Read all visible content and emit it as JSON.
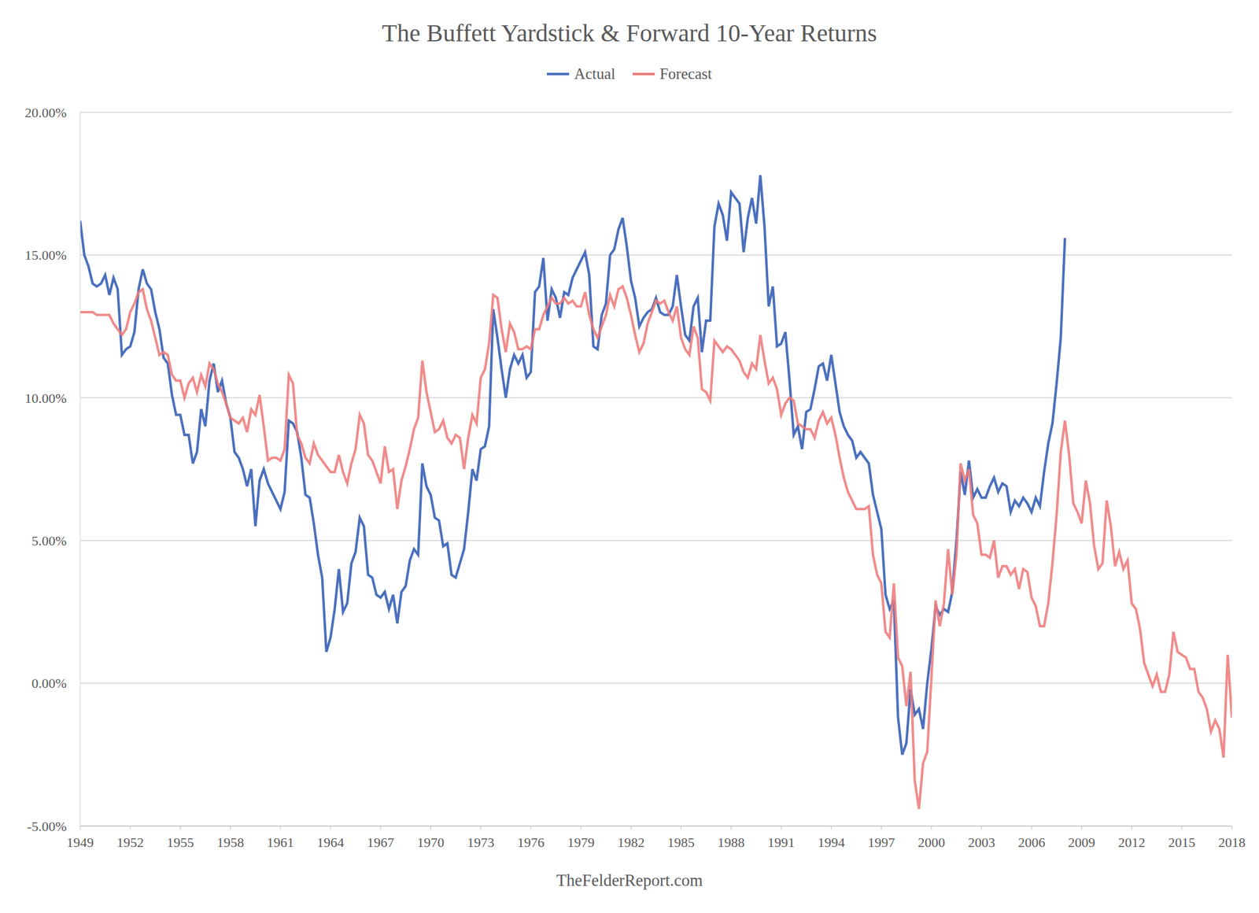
{
  "chart_data": {
    "type": "line",
    "title": "The Buffett Yardstick & Forward 10-Year Returns",
    "source": "TheFelderReport.com",
    "x": [
      1949,
      1949.25,
      1949.5,
      1949.75,
      1950,
      1950.25,
      1950.5,
      1950.75,
      1951,
      1951.25,
      1951.5,
      1951.75,
      1952,
      1952.25,
      1952.5,
      1952.75,
      1953,
      1953.25,
      1953.5,
      1953.75,
      1954,
      1954.25,
      1954.5,
      1954.75,
      1955,
      1955.25,
      1955.5,
      1955.75,
      1956,
      1956.25,
      1956.5,
      1956.75,
      1957,
      1957.25,
      1957.5,
      1957.75,
      1958,
      1958.25,
      1958.5,
      1958.75,
      1959,
      1959.25,
      1959.5,
      1959.75,
      1960,
      1960.25,
      1960.5,
      1960.75,
      1961,
      1961.25,
      1961.5,
      1961.75,
      1962,
      1962.25,
      1962.5,
      1962.75,
      1963,
      1963.25,
      1963.5,
      1963.75,
      1964,
      1964.25,
      1964.5,
      1964.75,
      1965,
      1965.25,
      1965.5,
      1965.75,
      1966,
      1966.25,
      1966.5,
      1966.75,
      1967,
      1967.25,
      1967.5,
      1967.75,
      1968,
      1968.25,
      1968.5,
      1968.75,
      1969,
      1969.25,
      1969.5,
      1969.75,
      1970,
      1970.25,
      1970.5,
      1970.75,
      1971,
      1971.25,
      1971.5,
      1971.75,
      1972,
      1972.25,
      1972.5,
      1972.75,
      1973,
      1973.25,
      1973.5,
      1973.75,
      1974,
      1974.25,
      1974.5,
      1974.75,
      1975,
      1975.25,
      1975.5,
      1975.75,
      1976,
      1976.25,
      1976.5,
      1976.75,
      1977,
      1977.25,
      1977.5,
      1977.75,
      1978,
      1978.25,
      1978.5,
      1978.75,
      1979,
      1979.25,
      1979.5,
      1979.75,
      1980,
      1980.25,
      1980.5,
      1980.75,
      1981,
      1981.25,
      1981.5,
      1981.75,
      1982,
      1982.25,
      1982.5,
      1982.75,
      1983,
      1983.25,
      1983.5,
      1983.75,
      1984,
      1984.25,
      1984.5,
      1984.75,
      1985,
      1985.25,
      1985.5,
      1985.75,
      1986,
      1986.25,
      1986.5,
      1986.75,
      1987,
      1987.25,
      1987.5,
      1987.75,
      1988,
      1988.25,
      1988.5,
      1988.75,
      1989,
      1989.25,
      1989.5,
      1989.75,
      1990,
      1990.25,
      1990.5,
      1990.75,
      1991,
      1991.25,
      1991.5,
      1991.75,
      1992,
      1992.25,
      1992.5,
      1992.75,
      1993,
      1993.25,
      1993.5,
      1993.75,
      1994,
      1994.25,
      1994.5,
      1994.75,
      1995,
      1995.25,
      1995.5,
      1995.75,
      1996,
      1996.25,
      1996.5,
      1996.75,
      1997,
      1997.25,
      1997.5,
      1997.75,
      1998,
      1998.25,
      1998.5,
      1998.75,
      1999,
      1999.25,
      1999.5,
      1999.75,
      2000,
      2000.25,
      2000.5,
      2000.75,
      2001,
      2001.25,
      2001.5,
      2001.75,
      2002,
      2002.25,
      2002.5,
      2002.75,
      2003,
      2003.25,
      2003.5,
      2003.75,
      2004,
      2004.25,
      2004.5,
      2004.75,
      2005,
      2005.25,
      2005.5,
      2005.75,
      2006,
      2006.25,
      2006.5,
      2006.75,
      2007,
      2007.25,
      2007.5,
      2007.75,
      2008,
      2008.25,
      2008.5,
      2008.75,
      2009,
      2009.25,
      2009.5,
      2009.75,
      2010,
      2010.25,
      2010.5,
      2010.75,
      2011,
      2011.25,
      2011.5,
      2011.75,
      2012,
      2012.25,
      2012.5,
      2012.75,
      2013,
      2013.25,
      2013.5,
      2013.75,
      2014,
      2014.25,
      2014.5,
      2014.75,
      2015,
      2015.25,
      2015.5,
      2015.75,
      2016,
      2016.25,
      2016.5,
      2016.75,
      2017,
      2017.25,
      2017.5,
      2017.75,
      2018
    ],
    "series": [
      {
        "name": "Actual",
        "color": "#4a6fbd",
        "values": [
          16.2,
          15.0,
          14.6,
          14.0,
          13.9,
          14.0,
          14.3,
          13.6,
          14.2,
          13.8,
          11.5,
          11.7,
          11.8,
          12.3,
          13.8,
          14.5,
          14.0,
          13.8,
          13.0,
          12.4,
          11.4,
          11.2,
          10.1,
          9.4,
          9.4,
          8.7,
          8.7,
          7.7,
          8.1,
          9.6,
          9.0,
          10.6,
          11.2,
          10.2,
          10.6,
          9.8,
          9.3,
          8.1,
          7.9,
          7.5,
          6.9,
          7.5,
          5.5,
          7.1,
          7.5,
          7.0,
          6.7,
          6.4,
          6.1,
          6.7,
          9.2,
          9.1,
          8.8,
          7.9,
          6.6,
          6.5,
          5.6,
          4.5,
          3.7,
          1.1,
          1.6,
          2.6,
          4.0,
          2.5,
          2.8,
          4.2,
          4.6,
          5.8,
          5.5,
          3.8,
          3.7,
          3.1,
          3.0,
          3.2,
          2.6,
          3.1,
          2.1,
          3.2,
          3.4,
          4.3,
          4.7,
          4.5,
          7.7,
          6.9,
          6.6,
          5.8,
          5.7,
          4.8,
          4.9,
          3.8,
          3.7,
          4.2,
          4.7,
          6.0,
          7.5,
          7.1,
          8.2,
          8.3,
          9.0,
          13.1,
          12.1,
          11.0,
          10.0,
          11.0,
          11.5,
          11.2,
          11.5,
          10.7,
          10.9,
          13.7,
          13.9,
          14.9,
          12.7,
          13.8,
          13.5,
          12.8,
          13.7,
          13.6,
          14.2,
          14.5,
          14.8,
          15.1,
          14.3,
          11.8,
          11.7,
          12.9,
          13.3,
          15.0,
          15.2,
          15.9,
          16.3,
          15.3,
          14.1,
          13.5,
          12.5,
          12.8,
          13.0,
          13.1,
          13.5,
          13.0,
          12.9,
          12.9,
          13.2,
          14.3,
          13.2,
          12.2,
          12.0,
          13.2,
          13.5,
          11.6,
          12.7,
          12.7,
          16.0,
          16.8,
          16.4,
          15.5,
          17.2,
          17.0,
          16.8,
          15.1,
          16.3,
          17.0,
          16.1,
          17.8,
          16.0,
          13.2,
          13.9,
          11.8,
          11.9,
          12.3,
          10.6,
          8.7,
          9.0,
          8.2,
          9.5,
          9.6,
          10.3,
          11.1,
          11.2,
          10.6,
          11.5,
          10.5,
          9.5,
          9.0,
          8.7,
          8.5,
          7.9,
          8.1,
          7.9,
          7.7,
          6.6,
          6.0,
          5.4,
          3.1,
          2.6,
          2.9,
          -1.2,
          -2.5,
          -2.1,
          -0.2,
          -1.1,
          -0.9,
          -1.6,
          0.0,
          1.2,
          2.7,
          2.4,
          2.6,
          2.5,
          3.2,
          5.0,
          7.4,
          6.6,
          7.8,
          6.5,
          6.8,
          6.5,
          6.5,
          6.9,
          7.2,
          6.7,
          7.0,
          6.9,
          6.0,
          6.4,
          6.2,
          6.5,
          6.3,
          6.0,
          6.5,
          6.2,
          7.4,
          8.4,
          9.1,
          10.5,
          12.1,
          15.6,
          null,
          null,
          null,
          null,
          null,
          null,
          null,
          null,
          null,
          null,
          null,
          null,
          null,
          null,
          null,
          null,
          null,
          null,
          null,
          null,
          null,
          null,
          null,
          null,
          null,
          null,
          null,
          null,
          null,
          null,
          null,
          null,
          null,
          null,
          null,
          null,
          null,
          null,
          null,
          null
        ]
      },
      {
        "name": "Forecast",
        "color": "#ee7b7b",
        "values": [
          13.0,
          13.0,
          13.0,
          13.0,
          12.9,
          12.9,
          12.9,
          12.9,
          12.6,
          12.4,
          12.2,
          12.4,
          13.0,
          13.3,
          13.7,
          13.8,
          13.1,
          12.7,
          12.1,
          11.5,
          11.6,
          11.5,
          10.8,
          10.6,
          10.6,
          10.0,
          10.5,
          10.7,
          10.2,
          10.8,
          10.4,
          11.2,
          11.0,
          10.5,
          10.2,
          9.8,
          9.3,
          9.2,
          9.1,
          9.3,
          8.8,
          9.6,
          9.4,
          10.1,
          9.0,
          7.8,
          7.9,
          7.9,
          7.8,
          8.2,
          10.8,
          10.5,
          8.7,
          8.4,
          7.9,
          7.7,
          8.4,
          8.0,
          7.8,
          7.6,
          7.4,
          7.4,
          8.0,
          7.4,
          7.0,
          7.7,
          8.2,
          9.4,
          9.1,
          8.0,
          7.8,
          7.4,
          7.0,
          8.3,
          7.4,
          7.5,
          6.1,
          7.1,
          7.6,
          8.2,
          8.9,
          9.3,
          11.3,
          10.2,
          9.5,
          8.8,
          8.9,
          9.2,
          8.6,
          8.4,
          8.7,
          8.6,
          7.5,
          8.6,
          9.4,
          9.1,
          10.7,
          11.0,
          11.9,
          13.6,
          13.5,
          12.4,
          11.6,
          12.6,
          12.3,
          11.7,
          11.7,
          11.8,
          11.7,
          12.4,
          12.4,
          12.9,
          13.2,
          13.5,
          13.3,
          13.3,
          13.5,
          13.3,
          13.4,
          13.2,
          13.2,
          13.7,
          12.9,
          12.4,
          12.1,
          12.5,
          12.9,
          13.6,
          13.2,
          13.8,
          13.9,
          13.5,
          12.9,
          12.2,
          11.6,
          11.9,
          12.6,
          13.0,
          13.4,
          13.3,
          13.4,
          13.0,
          12.7,
          13.2,
          12.1,
          11.7,
          11.5,
          12.5,
          12.1,
          10.3,
          10.2,
          9.9,
          12.0,
          11.8,
          11.6,
          11.8,
          11.7,
          11.5,
          11.3,
          10.9,
          10.7,
          11.2,
          11.0,
          12.2,
          11.3,
          10.5,
          10.7,
          10.3,
          9.4,
          9.8,
          10.0,
          9.9,
          9.1,
          9.0,
          8.9,
          8.9,
          8.6,
          9.2,
          9.5,
          9.1,
          9.3,
          8.7,
          7.9,
          7.2,
          6.7,
          6.4,
          6.1,
          6.1,
          6.1,
          6.2,
          4.5,
          3.8,
          3.5,
          1.8,
          1.6,
          3.5,
          0.9,
          0.6,
          -0.8,
          0.4,
          -3.4,
          -4.4,
          -2.8,
          -2.4,
          0.2,
          2.9,
          2.0,
          2.8,
          4.7,
          3.1,
          4.5,
          7.7,
          7.1,
          7.5,
          5.9,
          5.6,
          4.5,
          4.5,
          4.4,
          5.0,
          3.7,
          4.1,
          4.1,
          3.8,
          4.0,
          3.3,
          4.0,
          3.9,
          3.0,
          2.7,
          2.0,
          2.0,
          2.8,
          4.2,
          5.9,
          8.1,
          9.2,
          8.0,
          6.3,
          6.0,
          5.6,
          7.1,
          6.3,
          4.8,
          4.0,
          4.2,
          6.4,
          5.5,
          4.1,
          4.6,
          4.0,
          4.3,
          2.8,
          2.6,
          1.9,
          0.7,
          0.3,
          -0.1,
          0.3,
          -0.3,
          -0.3,
          0.3,
          1.8,
          1.1,
          1.0,
          0.9,
          0.5,
          0.5,
          -0.3,
          -0.5,
          -0.9,
          -1.7,
          -1.3,
          -1.6,
          -2.6,
          1.0,
          -1.2
        ]
      }
    ],
    "xlim": [
      1949,
      2018
    ],
    "xticks": [
      1949,
      1952,
      1955,
      1958,
      1961,
      1964,
      1967,
      1970,
      1973,
      1976,
      1979,
      1982,
      1985,
      1988,
      1991,
      1994,
      1997,
      2000,
      2003,
      2006,
      2009,
      2012,
      2015,
      2018
    ],
    "ylim": [
      -5,
      20
    ],
    "yticks": [
      {
        "value": -5,
        "label": "-5.00%"
      },
      {
        "value": 0,
        "label": "0.00%"
      },
      {
        "value": 5,
        "label": "5.00%"
      },
      {
        "value": 10,
        "label": "10.00%"
      },
      {
        "value": 15,
        "label": "15.00%"
      },
      {
        "value": 20,
        "label": "20.00%"
      }
    ],
    "grid": true,
    "legend": "top"
  }
}
